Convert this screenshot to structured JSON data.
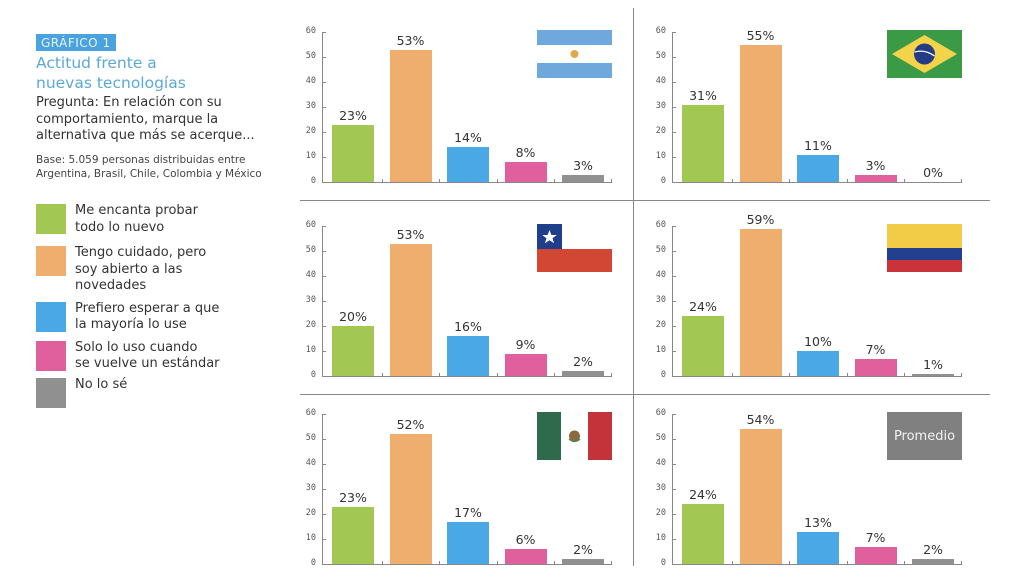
{
  "header": {
    "badge": "GRÁFICO 1",
    "title_line1": "Actitud frente a",
    "title_line2": "nuevas tecnologías",
    "question_line1": "Pregunta: En relación con su",
    "question_line2": "comportamiento, marque la",
    "question_line3": "alternativa que más se acerque...",
    "base_line1": "Base: 5.059 personas distribuidas entre",
    "base_line2": "Argentina, Brasil, Chile, Colombia y México"
  },
  "legend": [
    {
      "line1": "Me encanta probar",
      "line2": "todo lo nuevo",
      "line3": "",
      "color": "#a3c753"
    },
    {
      "line1": "Tengo cuidado, pero",
      "line2": "soy abierto a las",
      "line3": "novedades",
      "color": "#f0ae6e"
    },
    {
      "line1": "Prefiero esperar a que",
      "line2": "la mayoría lo use",
      "line3": "",
      "color": "#4aa8e6"
    },
    {
      "line1": "Solo lo uso cuando",
      "line2": "se vuelve un estándar",
      "line3": "",
      "color": "#e0609e"
    },
    {
      "line1": "No lo sé",
      "line2": "",
      "line3": "",
      "color": "#909090"
    }
  ],
  "promedio_label": "Promedio",
  "chart_data": [
    {
      "type": "bar",
      "title": "Argentina",
      "categories": [
        "Me encanta probar todo lo nuevo",
        "Tengo cuidado, pero soy abierto a las novedades",
        "Prefiero esperar a que la mayoría lo use",
        "Solo lo uso cuando se vuelve un estándar",
        "No lo sé"
      ],
      "values": [
        23,
        53,
        14,
        8,
        3
      ],
      "labels": [
        "23%",
        "53%",
        "14%",
        "8%",
        "3%"
      ],
      "ylim": [
        0,
        60
      ],
      "yticks": [
        0,
        10,
        20,
        30,
        40,
        50,
        60
      ],
      "flag": "argentina"
    },
    {
      "type": "bar",
      "title": "Brasil",
      "categories": [
        "Me encanta probar todo lo nuevo",
        "Tengo cuidado, pero soy abierto a las novedades",
        "Prefiero esperar a que la mayoría lo use",
        "Solo lo uso cuando se vuelve un estándar",
        "No lo sé"
      ],
      "values": [
        31,
        55,
        11,
        3,
        0
      ],
      "labels": [
        "31%",
        "55%",
        "11%",
        "3%",
        "0%"
      ],
      "ylim": [
        0,
        60
      ],
      "yticks": [
        0,
        10,
        20,
        30,
        40,
        50,
        60
      ],
      "flag": "brasil"
    },
    {
      "type": "bar",
      "title": "Chile",
      "categories": [
        "Me encanta probar todo lo nuevo",
        "Tengo cuidado, pero soy abierto a las novedades",
        "Prefiero esperar a que la mayoría lo use",
        "Solo lo uso cuando se vuelve un estándar",
        "No lo sé"
      ],
      "values": [
        20,
        53,
        16,
        9,
        2
      ],
      "labels": [
        "20%",
        "53%",
        "16%",
        "9%",
        "2%"
      ],
      "ylim": [
        0,
        60
      ],
      "yticks": [
        0,
        10,
        20,
        30,
        40,
        50,
        60
      ],
      "flag": "chile"
    },
    {
      "type": "bar",
      "title": "Colombia",
      "categories": [
        "Me encanta probar todo lo nuevo",
        "Tengo cuidado, pero soy abierto a las novedades",
        "Prefiero esperar a que la mayoría lo use",
        "Solo lo uso cuando se vuelve un estándar",
        "No lo sé"
      ],
      "values": [
        24,
        59,
        10,
        7,
        1
      ],
      "labels": [
        "24%",
        "59%",
        "10%",
        "7%",
        "1%"
      ],
      "ylim": [
        0,
        60
      ],
      "yticks": [
        0,
        10,
        20,
        30,
        40,
        50,
        60
      ],
      "flag": "colombia"
    },
    {
      "type": "bar",
      "title": "México",
      "categories": [
        "Me encanta probar todo lo nuevo",
        "Tengo cuidado, pero soy abierto a las novedades",
        "Prefiero esperar a que la mayoría lo use",
        "Solo lo uso cuando se vuelve un estándar",
        "No lo sé"
      ],
      "values": [
        23,
        52,
        17,
        6,
        2
      ],
      "labels": [
        "23%",
        "52%",
        "17%",
        "6%",
        "2%"
      ],
      "ylim": [
        0,
        60
      ],
      "yticks": [
        0,
        10,
        20,
        30,
        40,
        50,
        60
      ],
      "flag": "mexico"
    },
    {
      "type": "bar",
      "title": "Promedio",
      "categories": [
        "Me encanta probar todo lo nuevo",
        "Tengo cuidado, pero soy abierto a las novedades",
        "Prefiero esperar a que la mayoría lo use",
        "Solo lo uso cuando se vuelve un estándar",
        "No lo sé"
      ],
      "values": [
        24,
        54,
        13,
        7,
        2
      ],
      "labels": [
        "24%",
        "54%",
        "13%",
        "7%",
        "2%"
      ],
      "ylim": [
        0,
        60
      ],
      "yticks": [
        0,
        10,
        20,
        30,
        40,
        50,
        60
      ],
      "flag": "promedio"
    }
  ],
  "colors": [
    "#a3c753",
    "#f0ae6e",
    "#4aa8e6",
    "#e0609e",
    "#909090"
  ]
}
